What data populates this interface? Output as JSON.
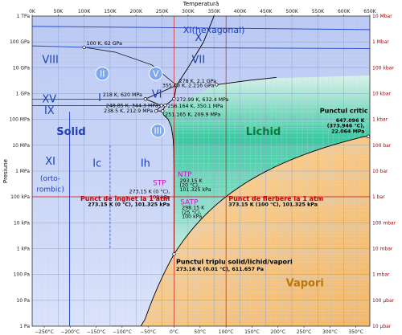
{
  "chart_data": {
    "type": "line",
    "title": "",
    "x_top": {
      "label": "Temperatură",
      "unit": "K",
      "range": [
        0,
        650
      ],
      "ticks": [
        "0K",
        "50K",
        "100K",
        "150K",
        "200K",
        "250K",
        "300K",
        "350K",
        "400K",
        "450K",
        "500K",
        "550K",
        "600K",
        "650K"
      ]
    },
    "x_bottom": {
      "unit": "°C",
      "ticks": [
        "−250°C",
        "−200°C",
        "−150°C",
        "−100°C",
        "−50°C",
        "0°C",
        "50°C",
        "100°C",
        "150°C",
        "200°C",
        "250°C",
        "300°C",
        "350°C"
      ]
    },
    "y_left": {
      "label": "Presiune",
      "scale": "log",
      "range_pa": [
        1,
        1000000000000.0
      ],
      "ticks": [
        "1 Pa",
        "10 Pa",
        "100 Pa",
        "1 kPa",
        "10 kPa",
        "100 kPa",
        "1 MPa",
        "10 MPa",
        "100 MPa",
        "1 GPa",
        "10 GPa",
        "100 GPa",
        "1 TPa"
      ]
    },
    "y_right": {
      "ticks": [
        "10 μbar",
        "100 μbar",
        "1 mbar",
        "10 mbar",
        "100 mbar",
        "1 bar",
        "10 bar",
        "100 bar",
        "1 kbar",
        "10 kbar",
        "100 kbar",
        "1 Mbar",
        "10 Mbar"
      ]
    },
    "phases": [
      {
        "id": "xi-hex",
        "label": "XI(hexagonal)"
      },
      {
        "id": "x",
        "label": "X"
      },
      {
        "id": "viii",
        "label": "VIII"
      },
      {
        "id": "vii",
        "label": "VII"
      },
      {
        "id": "ii",
        "label": "II"
      },
      {
        "id": "v",
        "label": "V"
      },
      {
        "id": "vi",
        "label": "VI"
      },
      {
        "id": "xv",
        "label": "XV"
      },
      {
        "id": "ix",
        "label": "IX"
      },
      {
        "id": "iii",
        "label": "III"
      },
      {
        "id": "i",
        "label": "I"
      },
      {
        "id": "solid",
        "label": "Solid"
      },
      {
        "id": "lichid",
        "label": "Lichid"
      },
      {
        "id": "xi",
        "label": "XI"
      },
      {
        "id": "ortorombic-1",
        "label": "(orto-"
      },
      {
        "id": "ortorombic-2",
        "label": "rombic)"
      },
      {
        "id": "ic",
        "label": "Ic"
      },
      {
        "id": "ih",
        "label": "Ih"
      },
      {
        "id": "vapori",
        "label": "Vapori"
      }
    ],
    "points": [
      {
        "id": "p-100k-62gpa",
        "T": 100,
        "P": 62000000000.0,
        "label": "100 K, 62 GPa"
      },
      {
        "id": "p-218k",
        "T": 218,
        "P": 620000000.0,
        "label": "218 K, 620 MPa"
      },
      {
        "id": "p-278k",
        "T": 278,
        "P": 2100000000.0,
        "label": "278 K, 2.1 GPa"
      },
      {
        "id": "p-355k",
        "T": 355,
        "P": 2216000000.0,
        "label": "355.00 K, 2.216 GPa"
      },
      {
        "id": "p-27299",
        "T": 272.99,
        "P": 632400000.0,
        "label": "272.99 K, 632.4 MPa"
      },
      {
        "id": "p-24885",
        "T": 248.85,
        "P": 344300000.0,
        "label": "248.85 K, 344.3 MPa"
      },
      {
        "id": "p-256164",
        "T": 256.164,
        "P": 350100000.0,
        "label": "256.164 K, 350.1 MPa"
      },
      {
        "id": "p-2385",
        "T": 238.5,
        "P": 212900000.0,
        "label": "238.5 K, 212.9 MPa"
      },
      {
        "id": "p-251165",
        "T": 251.165,
        "P": 209900000.0,
        "label": "251.165 K, 209.9 MPa"
      },
      {
        "id": "p-triple",
        "T": 273.16,
        "P": 611.657,
        "label": "273.16 K (0.01 °C), 611.657 Pa"
      },
      {
        "id": "p-critic",
        "T": 647.096,
        "P": 22064000.0,
        "label": "647.096 K (373.946 °C), 22.064 MPa"
      }
    ],
    "annotations": {
      "critic_title": "Punctul critic",
      "critic_l1": "647.096 K",
      "critic_l2": "(373.946 °C),",
      "critic_l3": "22.064 MPa",
      "stp": "STP",
      "stp_l1": "273.15 K (0 °C),",
      "stp_l2": "100 kPa",
      "ntp": "NTP",
      "ntp_l1": "293.15 K",
      "ntp_l2": "(20 °C),",
      "ntp_l3": "101.325 kPa",
      "satp": "SATP",
      "satp_l1": "298.15 K",
      "satp_l2": "(25 °C),",
      "satp_l3": "100 kPa",
      "freeze_title": "Punct de îngheț la 1 atm",
      "freeze_sub": "273.15 K (0 °C), 101.325 kPa",
      "boil_title": "Punct de fierbere la 1 atm",
      "boil_sub": "373.15 K (100 °C), 101.325 kPa",
      "triple_title": "Punctul triplu solid/lichid/vapori",
      "triple_sub": "273.16 K (0.01 °C), 611.657 Pa"
    },
    "colors": {
      "solid": "#c8d4f8",
      "liquid": "#3cc9a0",
      "vapor": "#f6c27a",
      "ref_line": "#cc0000",
      "grid": "#8fa3d0"
    }
  }
}
